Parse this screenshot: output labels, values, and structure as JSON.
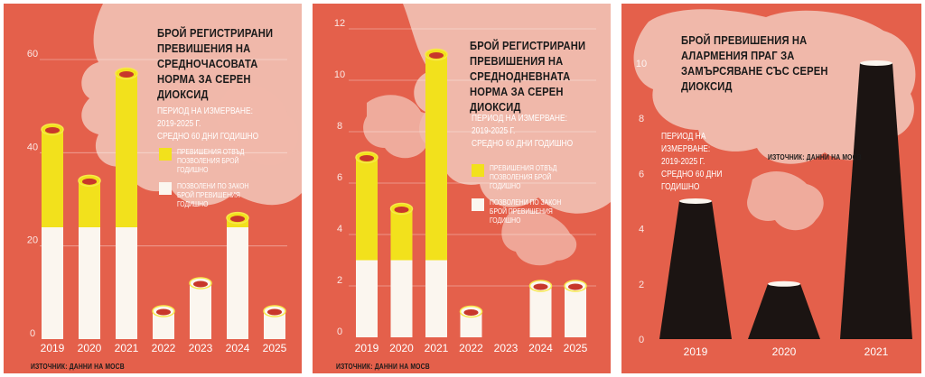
{
  "colors": {
    "background": "#e4604b",
    "exceed": "#f2e11c",
    "allowed": "#fbf6ef",
    "chimney": "#1b1412",
    "text_dark": "#1a1a1a",
    "smoke": "#f2c2b5"
  },
  "chart_data": [
    {
      "type": "bar",
      "title": "Брой регистрирани превишения на средночасовата норма за серен диоксид",
      "period": [
        "Период на измерване:",
        "2019-2025 г.",
        "средно 60 дни годишно"
      ],
      "legend": [
        {
          "key": "exceed",
          "lines": [
            "Превишения отвъд",
            "позволения брой годишно"
          ]
        },
        {
          "key": "allowed",
          "lines": [
            "Позволени по закон",
            "брой превишения годишно"
          ]
        }
      ],
      "source": "Източник: данни на МОСВ",
      "categories": [
        "2019",
        "2020",
        "2021",
        "2022",
        "2023",
        "2024",
        "2025"
      ],
      "values": [
        45,
        34,
        57,
        6,
        12,
        26,
        6
      ],
      "allowed_limit": 24,
      "ylim": [
        0,
        60
      ],
      "yticks": [
        "0",
        "20",
        "40",
        "60"
      ],
      "grid": true
    },
    {
      "type": "bar",
      "title": "Брой регистрирани превишения на среднодневната норма за серен диоксид",
      "period": [
        "Период на измерване:",
        "2019-2025 г.",
        "средно 60 дни годишно"
      ],
      "legend": [
        {
          "key": "exceed",
          "lines": [
            "Превишения отвъд",
            "позволения брой годишно"
          ]
        },
        {
          "key": "allowed",
          "lines": [
            "Позволени по закон",
            "брой превишения годишно"
          ]
        }
      ],
      "source": "Източник: данни на МОСВ",
      "categories": [
        "2019",
        "2020",
        "2021",
        "2022",
        "2023",
        "2024",
        "2025"
      ],
      "values": [
        7,
        5,
        11,
        1,
        0,
        2,
        2
      ],
      "allowed_limit": 3,
      "ylim": [
        0,
        12
      ],
      "yticks": [
        "0",
        "2",
        "4",
        "6",
        "8",
        "10",
        "12"
      ],
      "grid": true
    },
    {
      "type": "bar",
      "title": "Брой превишения на алармения праг за замърсяване със серен диоксид",
      "period": [
        "Период на измерване:",
        "2019-2025 г.",
        "средно 60 дни годишно"
      ],
      "source": "Източник: данни на МОСВ",
      "categories": [
        "2019",
        "2020",
        "2021"
      ],
      "values": [
        5,
        2,
        10
      ],
      "ylim": [
        0,
        10
      ],
      "yticks": [
        "0",
        "2",
        "4",
        "6",
        "8",
        "10"
      ],
      "grid": false
    }
  ]
}
